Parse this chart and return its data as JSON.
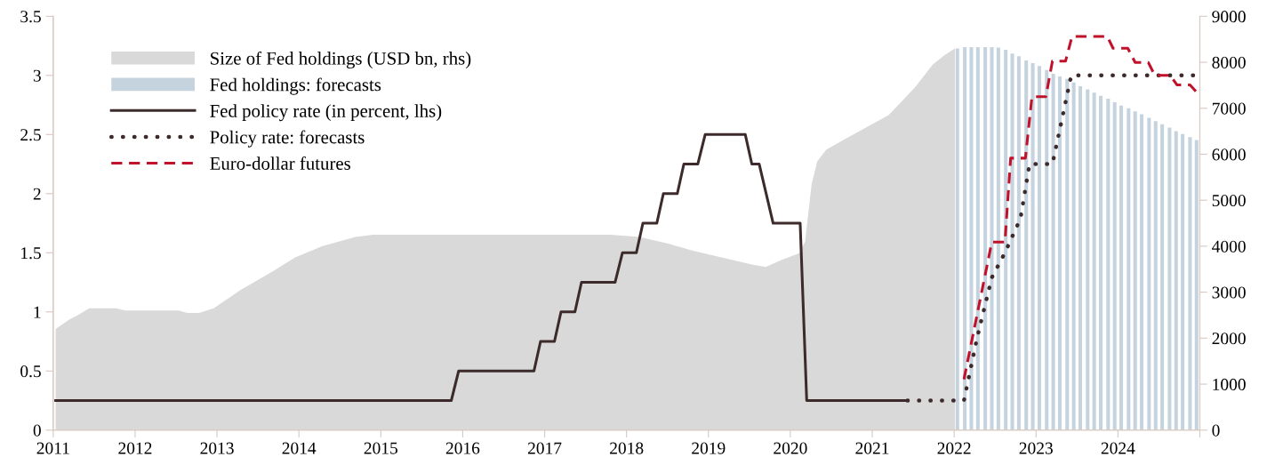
{
  "chart_data": {
    "type": "line",
    "legend": "top left",
    "grid": false,
    "xlim": [
      2011,
      2025
    ],
    "xticks": [
      2011,
      2012,
      2013,
      2014,
      2015,
      2016,
      2017,
      2018,
      2019,
      2020,
      2021,
      2022,
      2023,
      2024,
      {
        "value": 2025,
        "label": null
      }
    ],
    "ylim": [
      0,
      3.5
    ],
    "yticks": [
      0,
      0.5,
      1,
      1.5,
      2,
      2.5,
      3,
      3.5
    ],
    "y2lim": [
      0,
      9000
    ],
    "y2ticks": [
      0,
      1000,
      2000,
      3000,
      4000,
      5000,
      6000,
      7000,
      8000,
      9000
    ],
    "series": [
      {
        "name": "Size of Fed holdings (USD bn, rhs)",
        "type": "area",
        "axis": "y2",
        "color": "#d9d9d9",
        "x": [
          2011.03,
          2011.19,
          2011.3,
          2011.44,
          2011.77,
          2011.88,
          2012.53,
          2012.64,
          2012.78,
          2012.96,
          2013.29,
          2013.68,
          2013.95,
          2014.28,
          2014.69,
          2014.91,
          2016.1,
          2017.8,
          2018.16,
          2018.52,
          2018.81,
          2019.17,
          2019.53,
          2019.7,
          2019.89,
          2020.11,
          2020.18,
          2020.26,
          2020.33,
          2020.44,
          2020.69,
          2021.2,
          2021.52,
          2021.74,
          2021.88,
          2022.01
        ],
        "values": [
          2200,
          2400,
          2500,
          2650,
          2650,
          2600,
          2600,
          2550,
          2550,
          2650,
          3050,
          3450,
          3750,
          4000,
          4200,
          4250,
          4250,
          4250,
          4200,
          4050,
          3900,
          3750,
          3600,
          3550,
          3700,
          3850,
          4100,
          5350,
          5850,
          6100,
          6350,
          6850,
          7450,
          7950,
          8150,
          8300
        ]
      },
      {
        "name": "Fed holdings: forecasts",
        "type": "bar",
        "axis": "y2",
        "color": "#c5d3df",
        "x": [
          2022.04,
          2022.13,
          2022.21,
          2022.29,
          2022.38,
          2022.46,
          2022.54,
          2022.63,
          2022.71,
          2022.79,
          2022.88,
          2022.96,
          2023.04,
          2023.13,
          2023.21,
          2023.29,
          2023.38,
          2023.46,
          2023.54,
          2023.63,
          2023.71,
          2023.79,
          2023.88,
          2023.96,
          2024.04,
          2024.13,
          2024.21,
          2024.29,
          2024.38,
          2024.46,
          2024.54,
          2024.63,
          2024.71,
          2024.79,
          2024.88,
          2024.96
        ],
        "values": [
          8300,
          8330,
          8330,
          8330,
          8330,
          8330,
          8320,
          8270,
          8190,
          8130,
          8040,
          7980,
          7920,
          7830,
          7750,
          7690,
          7640,
          7560,
          7480,
          7410,
          7340,
          7270,
          7210,
          7130,
          7060,
          7000,
          6930,
          6870,
          6790,
          6720,
          6650,
          6580,
          6500,
          6440,
          6370,
          6310
        ]
      },
      {
        "name": "Fed policy rate (in percent, lhs)",
        "line_style": "solid",
        "color": "#3d2b2b",
        "x": [
          2011.03,
          2015.86,
          2015.95,
          2016.87,
          2016.95,
          2017.12,
          2017.2,
          2017.37,
          2017.45,
          2017.86,
          2017.95,
          2018.12,
          2018.2,
          2018.37,
          2018.45,
          2018.62,
          2018.7,
          2018.87,
          2018.96,
          2019.45,
          2019.53,
          2019.62,
          2019.79,
          2020.12,
          2020.2,
          2021.43
        ],
        "values": [
          0.25,
          0.25,
          0.5,
          0.5,
          0.75,
          0.75,
          1,
          1,
          1.25,
          1.25,
          1.5,
          1.5,
          1.75,
          1.75,
          2,
          2,
          2.25,
          2.25,
          2.5,
          2.5,
          2.25,
          2.25,
          1.75,
          1.75,
          0.25,
          0.25
        ]
      },
      {
        "name": "Policy rate: forecasts",
        "line_style": "dotted",
        "color": "#3d2b2b",
        "x": [
          2021.43,
          2022.12,
          2022.28,
          2022.46,
          2022.62,
          2022.81,
          2022.92,
          2023.2,
          2023.43,
          2025.0
        ],
        "values": [
          0.25,
          0.25,
          0.78,
          1.29,
          1.5,
          1.79,
          2.25,
          2.25,
          3,
          3
        ]
      },
      {
        "name": "Euro-dollar futures",
        "line_style": "dashed",
        "color": "#c0122b",
        "x": [
          2022.12,
          2022.46,
          2022.62,
          2022.69,
          2022.87,
          2022.95,
          2023.12,
          2023.2,
          2023.36,
          2023.44,
          2023.87,
          2023.94,
          2024.12,
          2024.21,
          2024.37,
          2024.45,
          2024.64,
          2024.72,
          2024.88,
          2024.97,
          2025.0
        ],
        "values": [
          0.43,
          1.59,
          1.59,
          2.3,
          2.3,
          2.82,
          2.82,
          3.12,
          3.12,
          3.33,
          3.33,
          3.23,
          3.23,
          3.11,
          3.11,
          3,
          3,
          2.92,
          2.92,
          2.85,
          2.85
        ]
      }
    ]
  }
}
